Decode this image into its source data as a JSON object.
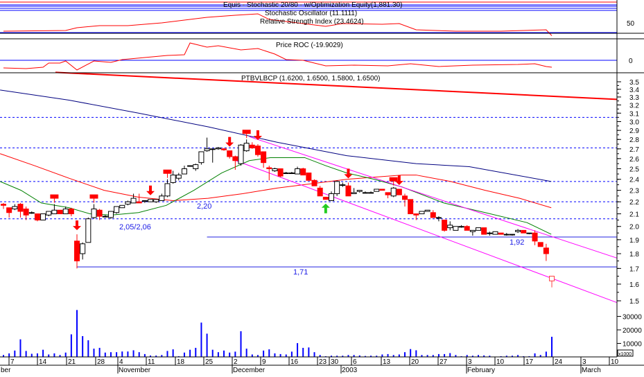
{
  "panels": {
    "oscillator": {
      "labels": [
        "Equis - Stochastic 20/80 - w/Optimization Equity(1,881.30)",
        "Stochastic Oscillator (11.1111)",
        "Relative Strength Index (23.4624)"
      ],
      "axis_labels": [
        "50"
      ],
      "rsi_series": [
        [
          0,
          32.9
        ],
        [
          11,
          34.3
        ],
        [
          13,
          40
        ],
        [
          17,
          44.3
        ],
        [
          22,
          44.3
        ],
        [
          28,
          50
        ],
        [
          31,
          54.3
        ],
        [
          36,
          61.4
        ],
        [
          41,
          65.7
        ],
        [
          45,
          68.6
        ],
        [
          47,
          57.1
        ],
        [
          52,
          50
        ],
        [
          57,
          42.9
        ],
        [
          60,
          48.6
        ],
        [
          67,
          47.1
        ],
        [
          70,
          48.6
        ],
        [
          73,
          35.7
        ],
        [
          80,
          32.9
        ],
        [
          88,
          32.9
        ],
        [
          96,
          35.7
        ],
        [
          97,
          23.46
        ]
      ],
      "reference_level": 30,
      "line_color": "#ff0000"
    },
    "roc": {
      "label": "Price ROC (-19.9029)",
      "axis_labels": [
        "0"
      ],
      "series": [
        [
          0,
          -22
        ],
        [
          4,
          -24
        ],
        [
          7,
          -20
        ],
        [
          8,
          -8
        ],
        [
          10,
          -8
        ],
        [
          11,
          -2
        ],
        [
          13,
          -28
        ],
        [
          16,
          -2
        ],
        [
          19,
          -6
        ],
        [
          21,
          2
        ],
        [
          25,
          8
        ],
        [
          29,
          14
        ],
        [
          32,
          16
        ],
        [
          33,
          50
        ],
        [
          36,
          38
        ],
        [
          38,
          42
        ],
        [
          42,
          30
        ],
        [
          45,
          34
        ],
        [
          48,
          18
        ],
        [
          50,
          2
        ],
        [
          53,
          0
        ],
        [
          57,
          -16
        ],
        [
          62,
          -14
        ],
        [
          68,
          -16
        ],
        [
          72,
          -10
        ],
        [
          77,
          -18
        ],
        [
          83,
          -14
        ],
        [
          91,
          -12
        ],
        [
          94,
          -10
        ],
        [
          96,
          -18
        ],
        [
          97,
          -19.9
        ]
      ],
      "line_color": "#ff0000"
    },
    "price": {
      "label": "PTBVLBCP (1.6200, 1.6500, 1.5800, 1.6500)",
      "axis_labels": [
        "3.5",
        "3.4",
        "3.3",
        "3.2",
        "3.1",
        "3.0",
        "2.9",
        "2.8",
        "2.7",
        "2.6",
        "2.5",
        "2.4",
        "2.3",
        "2.2",
        "2.1",
        "2.0",
        "1.9",
        "1.8",
        "1.7",
        "1.6",
        "1.5"
      ],
      "annotations": [
        "2,20",
        "2,05/2,06",
        "1,71",
        "1,92"
      ],
      "up_color": "#ffffff",
      "down_color": "#ff0000"
    },
    "volume": {
      "axis_labels": [
        "30000",
        "20000",
        "10000"
      ],
      "unit_label": "x1000",
      "bar_color": "#0000ff"
    }
  },
  "x_axis": {
    "day_ticks": [
      "7",
      "14",
      "21",
      "28",
      "4",
      "11",
      "18",
      "25",
      "2",
      "9",
      "16",
      "23",
      "30",
      "6",
      "13",
      "20",
      "27",
      "3",
      "10",
      "17",
      "24",
      "3",
      "10"
    ],
    "months": [
      "ber",
      "November",
      "December",
      "2003",
      "February",
      "March"
    ]
  },
  "chart_data": {
    "type": "candlestick",
    "symbol": "PTBVLBCP",
    "scale": "log",
    "ylim": [
      1.5,
      3.5
    ],
    "grid": false,
    "ohlc": [
      [
        2.18,
        2.19,
        2.14,
        2.17
      ],
      [
        2.15,
        2.15,
        2.07,
        2.11
      ],
      [
        2.14,
        2.18,
        2.13,
        2.16
      ],
      [
        2.18,
        2.19,
        2.07,
        2.12
      ],
      [
        2.14,
        2.16,
        2.05,
        2.09
      ],
      [
        2.11,
        2.12,
        2.1,
        2.11
      ],
      [
        2.1,
        2.1,
        2.04,
        2.05
      ],
      [
        2.05,
        2.1,
        2.05,
        2.1
      ],
      [
        2.09,
        2.12,
        2.08,
        2.12
      ],
      [
        2.1,
        2.18,
        2.1,
        2.13
      ],
      [
        2.13,
        2.13,
        2.1,
        2.1
      ],
      [
        2.1,
        2.16,
        2.1,
        2.14
      ],
      [
        2.14,
        2.15,
        2.08,
        2.1
      ],
      [
        1.89,
        1.94,
        1.7,
        1.75
      ],
      [
        1.8,
        1.88,
        1.76,
        1.87
      ],
      [
        1.88,
        2.07,
        1.88,
        2.06
      ],
      [
        2.07,
        2.18,
        2.06,
        2.14
      ],
      [
        2.13,
        2.14,
        2.05,
        2.08
      ],
      [
        2.08,
        2.09,
        2.07,
        2.08
      ],
      [
        2.07,
        2.12,
        2.06,
        2.12
      ],
      [
        2.11,
        2.16,
        2.1,
        2.16
      ],
      [
        2.15,
        2.17,
        2.15,
        2.17
      ],
      [
        2.18,
        2.21,
        2.17,
        2.2
      ],
      [
        2.19,
        2.27,
        2.19,
        2.23
      ],
      [
        2.2,
        2.27,
        2.19,
        2.19
      ],
      [
        2.21,
        2.21,
        2.19,
        2.21
      ],
      [
        2.2,
        2.22,
        2.2,
        2.22
      ],
      [
        2.2,
        2.22,
        2.19,
        2.22
      ],
      [
        2.21,
        2.27,
        2.21,
        2.25
      ],
      [
        2.25,
        2.4,
        2.24,
        2.36
      ],
      [
        2.37,
        2.48,
        2.36,
        2.44
      ],
      [
        2.41,
        2.46,
        2.39,
        2.44
      ],
      [
        2.45,
        2.53,
        2.45,
        2.5
      ],
      [
        2.53,
        2.53,
        2.52,
        2.53
      ],
      [
        2.5,
        2.55,
        2.48,
        2.54
      ],
      [
        2.56,
        2.67,
        2.54,
        2.67
      ],
      [
        2.68,
        2.82,
        2.67,
        2.7
      ],
      [
        2.7,
        2.7,
        2.56,
        2.7
      ],
      [
        2.7,
        2.72,
        2.69,
        2.71
      ],
      [
        2.7,
        2.71,
        2.68,
        2.69
      ],
      [
        2.68,
        2.68,
        2.6,
        2.62
      ],
      [
        2.62,
        2.63,
        2.49,
        2.58
      ],
      [
        2.55,
        2.75,
        2.53,
        2.74
      ],
      [
        2.68,
        2.8,
        2.67,
        2.76
      ],
      [
        2.74,
        2.77,
        2.7,
        2.71
      ],
      [
        2.73,
        2.75,
        2.62,
        2.64
      ],
      [
        2.67,
        2.67,
        2.51,
        2.56
      ],
      [
        2.51,
        2.53,
        2.39,
        2.5
      ],
      [
        2.48,
        2.51,
        2.47,
        2.5
      ],
      [
        2.5,
        2.5,
        2.42,
        2.43
      ],
      [
        2.46,
        2.47,
        2.45,
        2.46
      ],
      [
        2.46,
        2.47,
        2.45,
        2.46
      ],
      [
        2.45,
        2.52,
        2.45,
        2.5
      ],
      [
        2.5,
        2.51,
        2.44,
        2.44
      ],
      [
        2.46,
        2.46,
        2.39,
        2.39
      ],
      [
        2.39,
        2.4,
        2.34,
        2.34
      ],
      [
        2.32,
        2.34,
        2.25,
        2.25
      ],
      [
        2.24,
        2.24,
        2.22,
        2.22
      ],
      [
        2.21,
        2.29,
        2.21,
        2.27
      ],
      [
        2.27,
        2.39,
        2.25,
        2.38
      ],
      [
        2.35,
        2.37,
        2.33,
        2.35
      ],
      [
        2.34,
        2.37,
        2.25,
        2.25
      ],
      [
        2.27,
        2.32,
        2.27,
        2.28
      ],
      [
        2.29,
        2.3,
        2.28,
        2.3
      ],
      [
        2.28,
        2.29,
        2.28,
        2.28
      ],
      [
        2.28,
        2.29,
        2.28,
        2.28
      ],
      [
        2.29,
        2.31,
        2.29,
        2.31
      ],
      [
        2.31,
        2.31,
        2.3,
        2.3
      ],
      [
        2.28,
        2.28,
        2.23,
        2.26
      ],
      [
        2.25,
        2.33,
        2.24,
        2.32
      ],
      [
        2.31,
        2.31,
        2.26,
        2.26
      ],
      [
        2.25,
        2.27,
        2.16,
        2.22
      ],
      [
        2.22,
        2.22,
        2.1,
        2.1
      ],
      [
        2.1,
        2.1,
        2.05,
        2.09
      ],
      [
        2.1,
        2.12,
        2.1,
        2.12
      ],
      [
        2.12,
        2.13,
        2.12,
        2.13
      ],
      [
        2.11,
        2.13,
        2.07,
        2.07
      ],
      [
        2.07,
        2.08,
        2.04,
        2.07
      ],
      [
        2.05,
        2.05,
        1.96,
        1.97
      ],
      [
        1.99,
        2.04,
        1.97,
        2.01
      ],
      [
        1.97,
        2.0,
        1.97,
        2.0
      ],
      [
        2.0,
        2.01,
        1.99,
        2.0
      ],
      [
        2.0,
        2.01,
        1.97,
        1.97
      ],
      [
        1.96,
        1.97,
        1.93,
        1.97
      ],
      [
        1.97,
        1.99,
        1.97,
        1.99
      ],
      [
        1.99,
        1.99,
        1.94,
        1.94
      ],
      [
        1.95,
        1.96,
        1.93,
        1.95
      ],
      [
        1.94,
        1.96,
        1.94,
        1.96
      ],
      [
        1.95,
        1.95,
        1.94,
        1.94
      ],
      [
        1.94,
        1.95,
        1.93,
        1.94
      ],
      [
        1.94,
        1.94,
        1.93,
        1.94
      ],
      [
        1.96,
        1.98,
        1.95,
        1.97
      ],
      [
        1.97,
        1.97,
        1.95,
        1.95
      ],
      [
        1.95,
        1.95,
        1.94,
        1.95
      ],
      [
        1.95,
        1.97,
        1.86,
        1.89
      ],
      [
        1.88,
        1.88,
        1.85,
        1.85
      ],
      [
        1.84,
        1.87,
        1.75,
        1.8
      ],
      [
        1.62,
        1.65,
        1.58,
        1.65
      ]
    ],
    "volume": [
      1400,
      2600,
      4700,
      13000,
      4400,
      2300,
      2600,
      5300,
      1800,
      2600,
      1400,
      3200,
      16700,
      34700,
      15400,
      12300,
      6100,
      6700,
      3200,
      3500,
      3500,
      4000,
      4000,
      4900,
      3500,
      2100,
      1000,
      1000,
      1400,
      4400,
      5600,
      500,
      3200,
      5300,
      6700,
      25400,
      17200,
      5300,
      3500,
      4700,
      3200,
      3900,
      19000,
      6100,
      1800,
      1400,
      4700,
      5600,
      2600,
      2100,
      1800,
      3900,
      10200,
      6700,
      7000,
      3500,
      1400,
      500,
      900,
      900,
      900,
      1400,
      1400,
      1100,
      700,
      900,
      900,
      1800,
      2100,
      1400,
      1800,
      3500,
      5800,
      4900,
      1400,
      1400,
      1400,
      2100,
      2100,
      2800,
      1400,
      500,
      1400,
      900,
      1400,
      1100,
      900,
      200,
      500,
      900,
      900,
      1400,
      500,
      500,
      2600,
      1400,
      3900,
      14900
    ],
    "moving_averages": [
      {
        "color": "#000080",
        "points": [
          [
            -0.6,
            3.39
          ],
          [
            11.6,
            3.26
          ],
          [
            23.9,
            3.1
          ],
          [
            36.2,
            2.94
          ],
          [
            48.4,
            2.77
          ],
          [
            60.7,
            2.63
          ],
          [
            73,
            2.55
          ],
          [
            82.4,
            2.52
          ],
          [
            96.9,
            2.38
          ]
        ]
      },
      {
        "color": "#ff0000",
        "points": [
          [
            -0.6,
            2.65
          ],
          [
            5.5,
            2.53
          ],
          [
            11.6,
            2.41
          ],
          [
            17.8,
            2.3
          ],
          [
            23.9,
            2.24
          ],
          [
            30,
            2.21
          ],
          [
            36.2,
            2.23
          ],
          [
            42.3,
            2.27
          ],
          [
            48.4,
            2.32
          ],
          [
            54.6,
            2.36
          ],
          [
            60.7,
            2.4
          ],
          [
            70.5,
            2.44
          ],
          [
            73,
            2.44
          ],
          [
            79.1,
            2.38
          ],
          [
            85.2,
            2.3
          ],
          [
            91.3,
            2.23
          ],
          [
            96.9,
            2.15
          ]
        ]
      },
      {
        "color": "#008000",
        "points": [
          [
            -0.6,
            2.38
          ],
          [
            3.1,
            2.3
          ],
          [
            6.7,
            2.19
          ],
          [
            11.6,
            2.15
          ],
          [
            15.3,
            2.1
          ],
          [
            19,
            2.09
          ],
          [
            23.9,
            2.11
          ],
          [
            28.8,
            2.17
          ],
          [
            33.7,
            2.3
          ],
          [
            38.6,
            2.46
          ],
          [
            43.5,
            2.58
          ],
          [
            47.2,
            2.61
          ],
          [
            53.3,
            2.61
          ],
          [
            57,
            2.53
          ],
          [
            60.7,
            2.46
          ],
          [
            65.6,
            2.4
          ],
          [
            70.5,
            2.33
          ],
          [
            77.9,
            2.19
          ],
          [
            85.2,
            2.11
          ],
          [
            92.6,
            2.03
          ],
          [
            96.9,
            1.94
          ]
        ]
      }
    ],
    "trendlines": [
      {
        "color": "#ff0000",
        "points": [
          [
            9.2,
            3.63
          ],
          [
            108.5,
            3.27
          ]
        ]
      },
      {
        "color": "#ff00ff",
        "points": [
          [
            43.5,
            2.83
          ],
          [
            108.5,
            1.77
          ]
        ]
      },
      {
        "color": "#ff00ff",
        "points": [
          [
            41.1,
            2.58
          ],
          [
            108.5,
            1.49
          ]
        ]
      }
    ],
    "dotted_levels": [
      3.05,
      2.71,
      2.38,
      2.2,
      2.06
    ],
    "support_levels": [
      {
        "value": 1.92,
        "from_bar": 36
      },
      {
        "value": 1.71,
        "from_bar": 13
      }
    ],
    "signals": {
      "cci_markers": [
        9,
        16,
        29,
        43,
        69
      ],
      "sell_arrows": [
        13,
        26,
        40,
        45,
        61,
        70
      ],
      "buy_arrows": [
        57
      ]
    }
  }
}
